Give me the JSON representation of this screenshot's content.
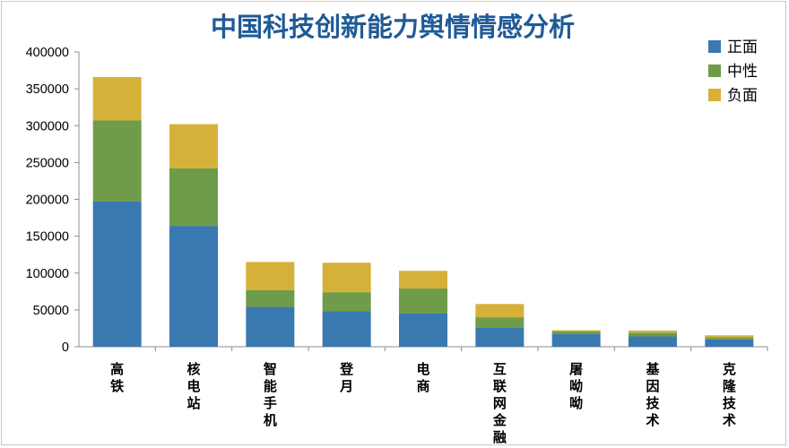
{
  "chart_data": {
    "type": "bar",
    "stacked": true,
    "title": "中国科技创新能力舆情情感分析",
    "categories": [
      "高铁",
      "核电站",
      "智能手机",
      "登月",
      "电商",
      "互联网金融",
      "屠呦呦",
      "基因技术",
      "克隆技术"
    ],
    "series": [
      {
        "name": "正面",
        "color": "#3a78b0",
        "values": [
          197000,
          164000,
          54000,
          48000,
          45000,
          26000,
          17000,
          14000,
          10000
        ]
      },
      {
        "name": "中性",
        "color": "#6e9c4a",
        "values": [
          110000,
          78000,
          23000,
          26000,
          34000,
          14000,
          4000,
          5000,
          3000
        ]
      },
      {
        "name": "负面",
        "color": "#d6b13a",
        "values": [
          59000,
          60000,
          38000,
          40000,
          24000,
          18000,
          1500,
          3000,
          2500
        ]
      }
    ],
    "yticks": [
      "0",
      "50000",
      "100000",
      "150000",
      "200000",
      "250000",
      "300000",
      "350000",
      "400000"
    ],
    "ylim": [
      0,
      400000
    ],
    "legend_position": "top-right",
    "grid": false
  }
}
